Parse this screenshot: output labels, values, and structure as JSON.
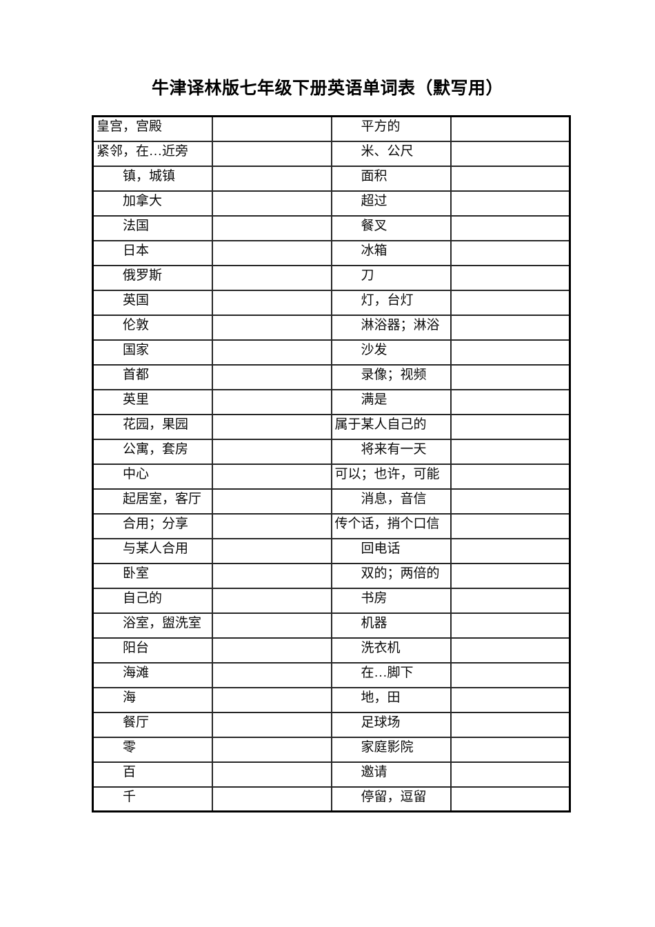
{
  "page": {
    "title": "牛津译林版七年级下册英语单词表（默写用）"
  },
  "table": {
    "columns": [
      "chinese-term-left",
      "english-blank-left",
      "chinese-term-right",
      "english-blank-right"
    ],
    "rows": [
      {
        "c1": "皇宫，宫殿",
        "c2": "",
        "c3": "　　平方的",
        "c4": ""
      },
      {
        "c1": "紧邻，在…近旁",
        "c2": "",
        "c3": "　　米、公尺",
        "c4": ""
      },
      {
        "c1": "　　镇，城镇",
        "c2": "",
        "c3": "　　面积",
        "c4": ""
      },
      {
        "c1": "　　加拿大",
        "c2": "",
        "c3": "　　超过",
        "c4": ""
      },
      {
        "c1": "　　法国",
        "c2": "",
        "c3": "　　餐叉",
        "c4": ""
      },
      {
        "c1": "　　日本",
        "c2": "",
        "c3": "　　冰箱",
        "c4": ""
      },
      {
        "c1": "　　俄罗斯",
        "c2": "",
        "c3": "　　刀",
        "c4": ""
      },
      {
        "c1": "　　英国",
        "c2": "",
        "c3": "　　灯，台灯",
        "c4": ""
      },
      {
        "c1": "　　伦敦",
        "c2": "",
        "c3": "　　淋浴器；淋浴",
        "c4": ""
      },
      {
        "c1": "　　国家",
        "c2": "",
        "c3": "　　沙发",
        "c4": ""
      },
      {
        "c1": "　　首都",
        "c2": "",
        "c3": "　　录像；视频",
        "c4": ""
      },
      {
        "c1": "　　英里",
        "c2": "",
        "c3": "　　满是",
        "c4": ""
      },
      {
        "c1": "　　花园，果园",
        "c2": "",
        "c3": "属于某人自己的",
        "c4": ""
      },
      {
        "c1": "　　公寓，套房",
        "c2": "",
        "c3": "　　将来有一天",
        "c4": ""
      },
      {
        "c1": "　　中心",
        "c2": "",
        "c3": "可以；也许，可能",
        "c4": ""
      },
      {
        "c1": "　　起居室，客厅",
        "c2": "",
        "c3": "　　消息，音信",
        "c4": ""
      },
      {
        "c1": "　　合用；分享",
        "c2": "",
        "c3": "传个话，捎个口信",
        "c4": ""
      },
      {
        "c1": "　　与某人合用",
        "c2": "",
        "c3": "　　回电话",
        "c4": ""
      },
      {
        "c1": "　　卧室",
        "c2": "",
        "c3": "　　双的；两倍的",
        "c4": ""
      },
      {
        "c1": "　　自己的",
        "c2": "",
        "c3": "　　书房",
        "c4": ""
      },
      {
        "c1": "　　浴室，盥洗室",
        "c2": "",
        "c3": "　　机器",
        "c4": ""
      },
      {
        "c1": "　　阳台",
        "c2": "",
        "c3": "　　洗衣机",
        "c4": ""
      },
      {
        "c1": "　　海滩",
        "c2": "",
        "c3": "　　在…脚下",
        "c4": ""
      },
      {
        "c1": "　　海",
        "c2": "",
        "c3": "　　地，田",
        "c4": ""
      },
      {
        "c1": "　　餐厅",
        "c2": "",
        "c3": "　　足球场",
        "c4": ""
      },
      {
        "c1": "　　零",
        "c2": "",
        "c3": "　　家庭影院",
        "c4": ""
      },
      {
        "c1": "　　百",
        "c2": "",
        "c3": "　　邀请",
        "c4": ""
      },
      {
        "c1": "　　千",
        "c2": "",
        "c3": "　　停留，逗留",
        "c4": ""
      }
    ]
  }
}
